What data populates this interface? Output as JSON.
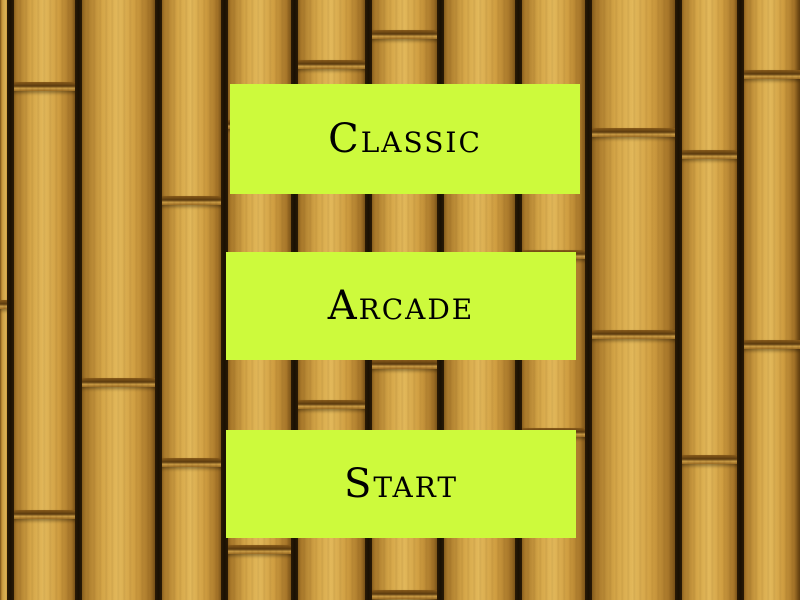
{
  "scene": {
    "background": "bamboo-stalks",
    "colors": {
      "bamboo_light": "#e2b85a",
      "bamboo_dark": "#6b4812",
      "button_fill": "#cdfa3c",
      "button_text": "#000000"
    }
  },
  "menu": {
    "classic_label": "Classic",
    "arcade_label": "Arcade",
    "start_label": "Start"
  }
}
